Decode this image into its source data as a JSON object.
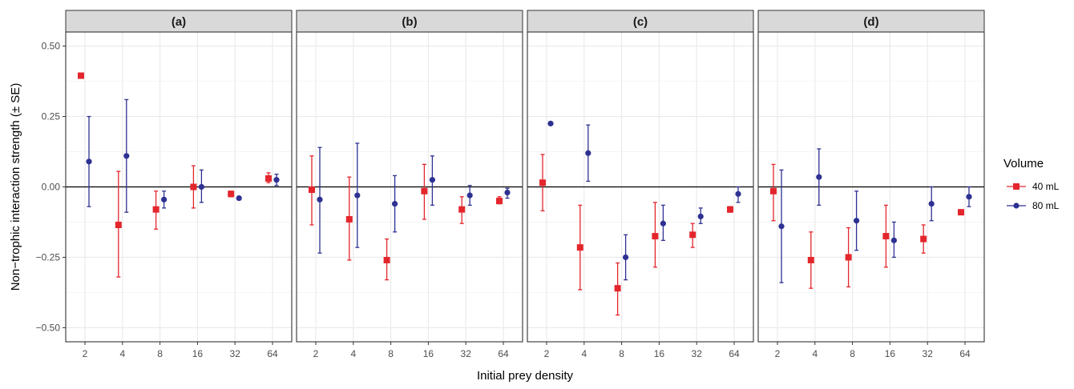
{
  "chart_data": {
    "type": "scatter",
    "xlabel": "Initial prey density",
    "ylabel": "Non−trophic interaction strength (± SE)",
    "x_categories": [
      "2",
      "4",
      "8",
      "16",
      "32",
      "64"
    ],
    "y_ticks": [
      0.5,
      0.25,
      0,
      -0.25,
      -0.5
    ],
    "y_tick_labels": [
      "0.50",
      "0.25",
      "0.00",
      "−0.25",
      "−0.50"
    ],
    "ylim": [
      -0.55,
      0.55
    ],
    "grid": true,
    "reference_line": 0,
    "legend": {
      "title": "Volume",
      "placement": "right",
      "entries": [
        {
          "label": "40 mL",
          "color": "#e3262c",
          "shape": "square"
        },
        {
          "label": "80 mL",
          "color": "#2e3192",
          "shape": "circle"
        }
      ]
    },
    "panels": [
      {
        "title": "(a)",
        "series": [
          {
            "name": "40 mL",
            "values": [
              0.395,
              -0.135,
              -0.08,
              0.0,
              -0.025,
              0.03
            ],
            "lower": [
              null,
              -0.32,
              -0.15,
              -0.075,
              -0.035,
              0.015
            ],
            "upper": [
              null,
              0.055,
              -0.015,
              0.075,
              -0.015,
              0.05
            ]
          },
          {
            "name": "80 mL",
            "values": [
              0.09,
              0.11,
              -0.045,
              0.0,
              -0.04,
              0.025
            ],
            "lower": [
              -0.07,
              -0.09,
              -0.075,
              -0.055,
              null,
              0.005
            ],
            "upper": [
              0.25,
              0.31,
              -0.015,
              0.06,
              null,
              0.045
            ]
          }
        ]
      },
      {
        "title": "(b)",
        "series": [
          {
            "name": "40 mL",
            "values": [
              -0.01,
              -0.115,
              -0.26,
              -0.015,
              -0.08,
              -0.05
            ],
            "lower": [
              -0.135,
              -0.26,
              -0.33,
              -0.115,
              -0.13,
              -0.06
            ],
            "upper": [
              0.11,
              0.035,
              -0.185,
              0.08,
              -0.035,
              -0.035
            ]
          },
          {
            "name": "80 mL",
            "values": [
              -0.045,
              -0.03,
              -0.06,
              0.025,
              -0.03,
              -0.02
            ],
            "lower": [
              -0.235,
              -0.215,
              -0.16,
              -0.065,
              -0.065,
              -0.04
            ],
            "upper": [
              0.14,
              0.155,
              0.04,
              0.11,
              0.005,
              -0.005
            ]
          }
        ]
      },
      {
        "title": "(c)",
        "series": [
          {
            "name": "40 mL",
            "values": [
              0.015,
              -0.215,
              -0.36,
              -0.175,
              -0.17,
              -0.08
            ],
            "lower": [
              -0.085,
              -0.365,
              -0.455,
              -0.285,
              -0.215,
              -0.09
            ],
            "upper": [
              0.115,
              -0.065,
              -0.27,
              -0.055,
              -0.13,
              -0.07
            ]
          },
          {
            "name": "80 mL",
            "values": [
              0.225,
              0.12,
              -0.25,
              -0.13,
              -0.105,
              -0.025
            ],
            "lower": [
              null,
              0.02,
              -0.33,
              -0.19,
              -0.13,
              -0.055
            ],
            "upper": [
              null,
              0.22,
              -0.17,
              -0.065,
              -0.075,
              0.0
            ]
          }
        ]
      },
      {
        "title": "(d)",
        "series": [
          {
            "name": "40 mL",
            "values": [
              -0.015,
              -0.26,
              -0.25,
              -0.175,
              -0.185,
              -0.09
            ],
            "lower": [
              -0.12,
              -0.36,
              -0.355,
              -0.285,
              -0.235,
              null
            ],
            "upper": [
              0.08,
              -0.16,
              -0.145,
              -0.065,
              -0.135,
              null
            ]
          },
          {
            "name": "80 mL",
            "values": [
              -0.14,
              0.035,
              -0.12,
              -0.19,
              -0.06,
              -0.035
            ],
            "lower": [
              -0.34,
              -0.065,
              -0.225,
              -0.25,
              -0.12,
              -0.07
            ],
            "upper": [
              0.06,
              0.135,
              -0.015,
              -0.125,
              0.0,
              0.0
            ]
          }
        ]
      }
    ]
  }
}
